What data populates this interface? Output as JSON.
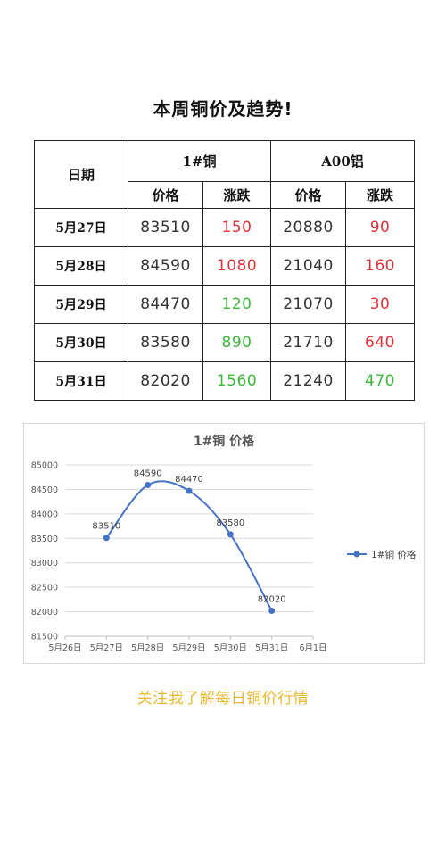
{
  "page": {
    "title": "本周铜价及趋势!",
    "footer": "关注我了解每日铜价行情"
  },
  "table": {
    "header_date": "日期",
    "group_copper": "1#铜",
    "group_aluminum": "A00铝",
    "sub_price": "价格",
    "sub_change": "涨跌",
    "rows": [
      {
        "date": "5月27日",
        "cu_price": "83510",
        "cu_change": "150",
        "cu_change_dir": "up",
        "al_price": "20880",
        "al_change": "90",
        "al_change_dir": "up"
      },
      {
        "date": "5月28日",
        "cu_price": "84590",
        "cu_change": "1080",
        "cu_change_dir": "up",
        "al_price": "21040",
        "al_change": "160",
        "al_change_dir": "up"
      },
      {
        "date": "5月29日",
        "cu_price": "84470",
        "cu_change": "120",
        "cu_change_dir": "down",
        "al_price": "21070",
        "al_change": "30",
        "al_change_dir": "up"
      },
      {
        "date": "5月30日",
        "cu_price": "83580",
        "cu_change": "890",
        "cu_change_dir": "down",
        "al_price": "21710",
        "al_change": "640",
        "al_change_dir": "up"
      },
      {
        "date": "5月31日",
        "cu_price": "82020",
        "cu_change": "1560",
        "cu_change_dir": "down",
        "al_price": "21240",
        "al_change": "470",
        "al_change_dir": "down"
      }
    ],
    "colors": {
      "up": "#e0303a",
      "down": "#3cb83c"
    }
  },
  "chart_data": {
    "type": "line",
    "title": "1#铜 价格",
    "xlabel": "",
    "ylabel": "",
    "categories": [
      "5月26日",
      "5月27日",
      "5月28日",
      "5月29日",
      "5月30日",
      "5月31日",
      "6月1日"
    ],
    "series": [
      {
        "name": "1#铜 价格",
        "x": [
          "5月27日",
          "5月28日",
          "5月29日",
          "5月30日",
          "5月31日"
        ],
        "values": [
          83510,
          84590,
          84470,
          83580,
          82020
        ],
        "labels": [
          "83510",
          "84590",
          "84470",
          "83580",
          "82020"
        ],
        "color": "#4472c4",
        "smooth": true
      }
    ],
    "ylim": [
      81500,
      85000
    ],
    "yticks": [
      "85000",
      "84500",
      "84000",
      "83500",
      "83000",
      "82500",
      "82000",
      "81500"
    ],
    "grid": true,
    "legend": "right"
  }
}
